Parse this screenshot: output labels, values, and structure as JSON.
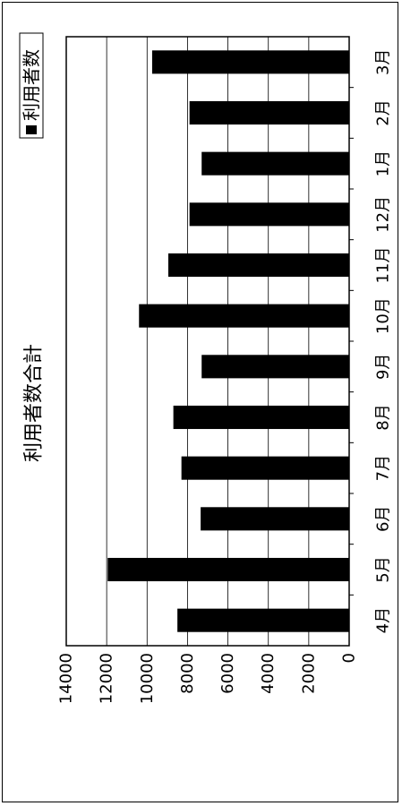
{
  "chart_data": {
    "type": "bar",
    "title": "利用者数合計",
    "categories": [
      "4月",
      "5月",
      "6月",
      "7月",
      "8月",
      "9月",
      "10月",
      "11月",
      "12月",
      "1月",
      "2月",
      "3月"
    ],
    "series": [
      {
        "name": "利用者数",
        "values": [
          8500,
          11950,
          7350,
          8300,
          8700,
          7300,
          10400,
          8950,
          7900,
          7300,
          7900,
          9750
        ]
      }
    ],
    "ylim": [
      0,
      14000
    ],
    "yticks": [
      0,
      2000,
      4000,
      6000,
      8000,
      10000,
      12000,
      14000
    ],
    "grid": true,
    "legend_position": "top-right",
    "orientation": "rotated-90",
    "colors": {
      "bar": "#000000",
      "grid": "#000000",
      "frame": "#000000"
    }
  }
}
